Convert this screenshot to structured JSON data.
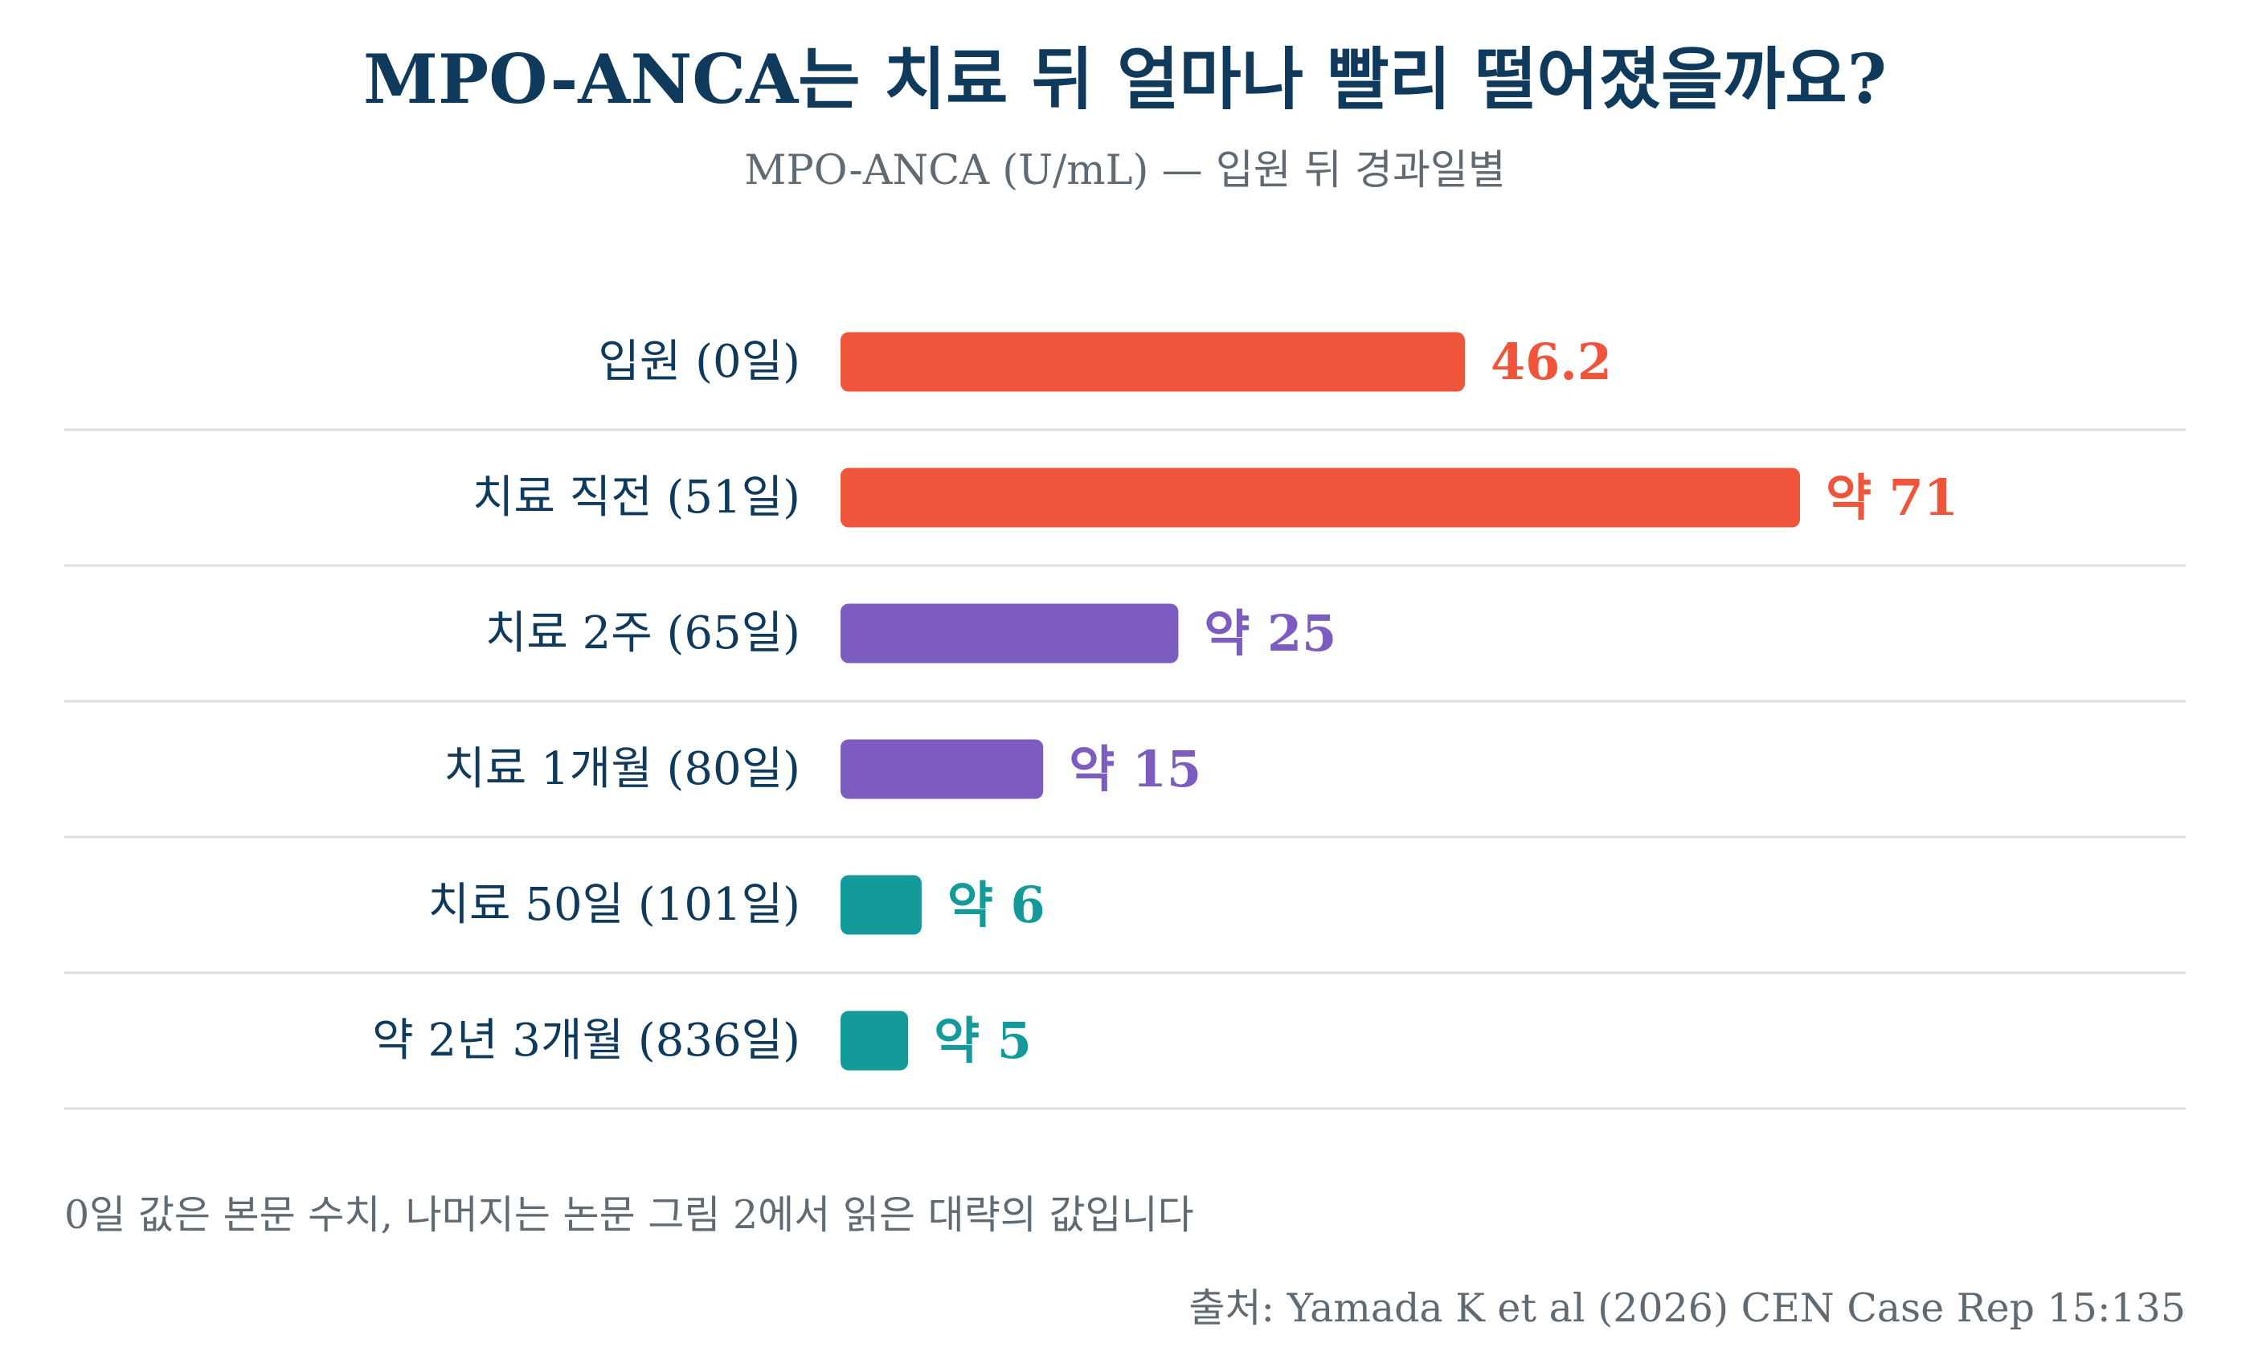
{
  "chart_data": {
    "type": "bar",
    "orientation": "horizontal",
    "title": "MPO-ANCA는 치료 뒤 얼마나 빨리 떨어졌을까요?",
    "subtitle": "MPO-ANCA (U/mL) — 입원 뒤 경과일별",
    "categories": [
      "입원 (0일)",
      "치료 직전 (51일)",
      "치료 2주 (65일)",
      "치료 1개월 (80일)",
      "치료 50일 (101일)",
      "약 2년 3개월 (836일)"
    ],
    "values": [
      46.2,
      71,
      25,
      15,
      6,
      5
    ],
    "value_labels": [
      "46.2",
      "약 71",
      "약 25",
      "약 15",
      "약 6",
      "약 5"
    ],
    "bar_colors": [
      "#ef553b",
      "#ef553b",
      "#7c5cbf",
      "#7c5cbf",
      "#149a9a",
      "#149a9a"
    ],
    "xlim": [
      0,
      71
    ],
    "grid": false,
    "legend": "none"
  },
  "note": "0일 값은 본문 수치, 나머지는 논문 그림 2에서 읽은 대략의 값입니다",
  "source": "출처: Yamada K et al (2026) CEN Case Rep 15:135",
  "colors": {
    "title": "#0f3a5c",
    "muted_text": "#5f6a73",
    "separator": "#dddddd"
  }
}
